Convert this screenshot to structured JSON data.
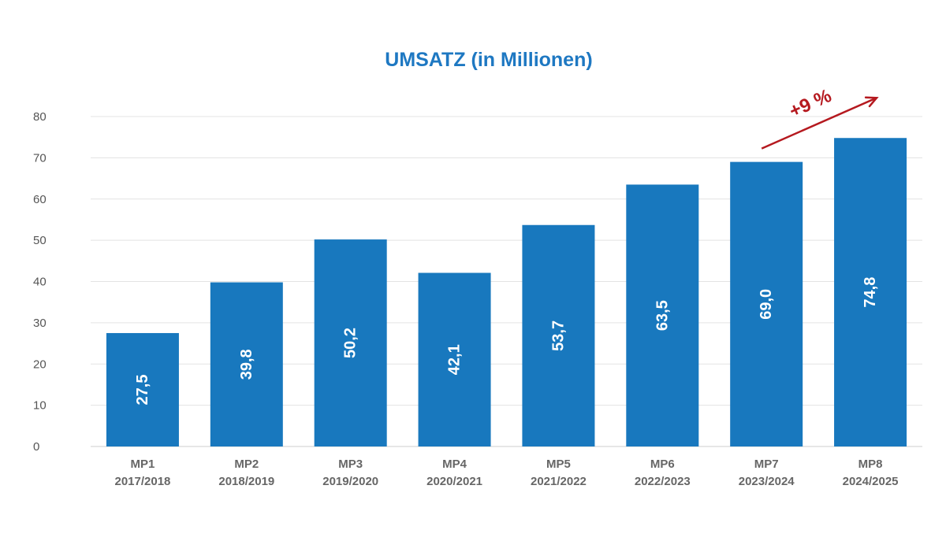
{
  "chart_data": {
    "type": "bar",
    "title": "UMSATZ (in Millionen)",
    "xlabel": "",
    "ylabel": "",
    "ylim": [
      0,
      80
    ],
    "yticks": [
      0,
      10,
      20,
      30,
      40,
      50,
      60,
      70,
      80
    ],
    "grid": true,
    "categories": [
      {
        "name": "MP1",
        "period": "2017/2018"
      },
      {
        "name": "MP2",
        "period": "2018/2019"
      },
      {
        "name": "MP3",
        "period": "2019/2020"
      },
      {
        "name": "MP4",
        "period": "2020/2021"
      },
      {
        "name": "MP5",
        "period": "2021/2022"
      },
      {
        "name": "MP6",
        "period": "2022/2023"
      },
      {
        "name": "MP7",
        "period": "2023/2024"
      },
      {
        "name": "MP8",
        "period": "2024/2025"
      }
    ],
    "values": [
      27.5,
      39.8,
      50.2,
      42.1,
      53.7,
      63.5,
      69.0,
      74.8
    ],
    "data_labels": [
      "27,5",
      "39,8",
      "50,2",
      "42,1",
      "53,7",
      "63,5",
      "69,0",
      "74,8"
    ],
    "annotation": {
      "text": "+9 %",
      "from_category": "MP7",
      "to_category": "MP8"
    }
  },
  "colors": {
    "bar": "#1878be",
    "title": "#1e78c2",
    "grid": "#e3e3e3",
    "axis": "#cccccc",
    "annotation": "#b5191f"
  }
}
